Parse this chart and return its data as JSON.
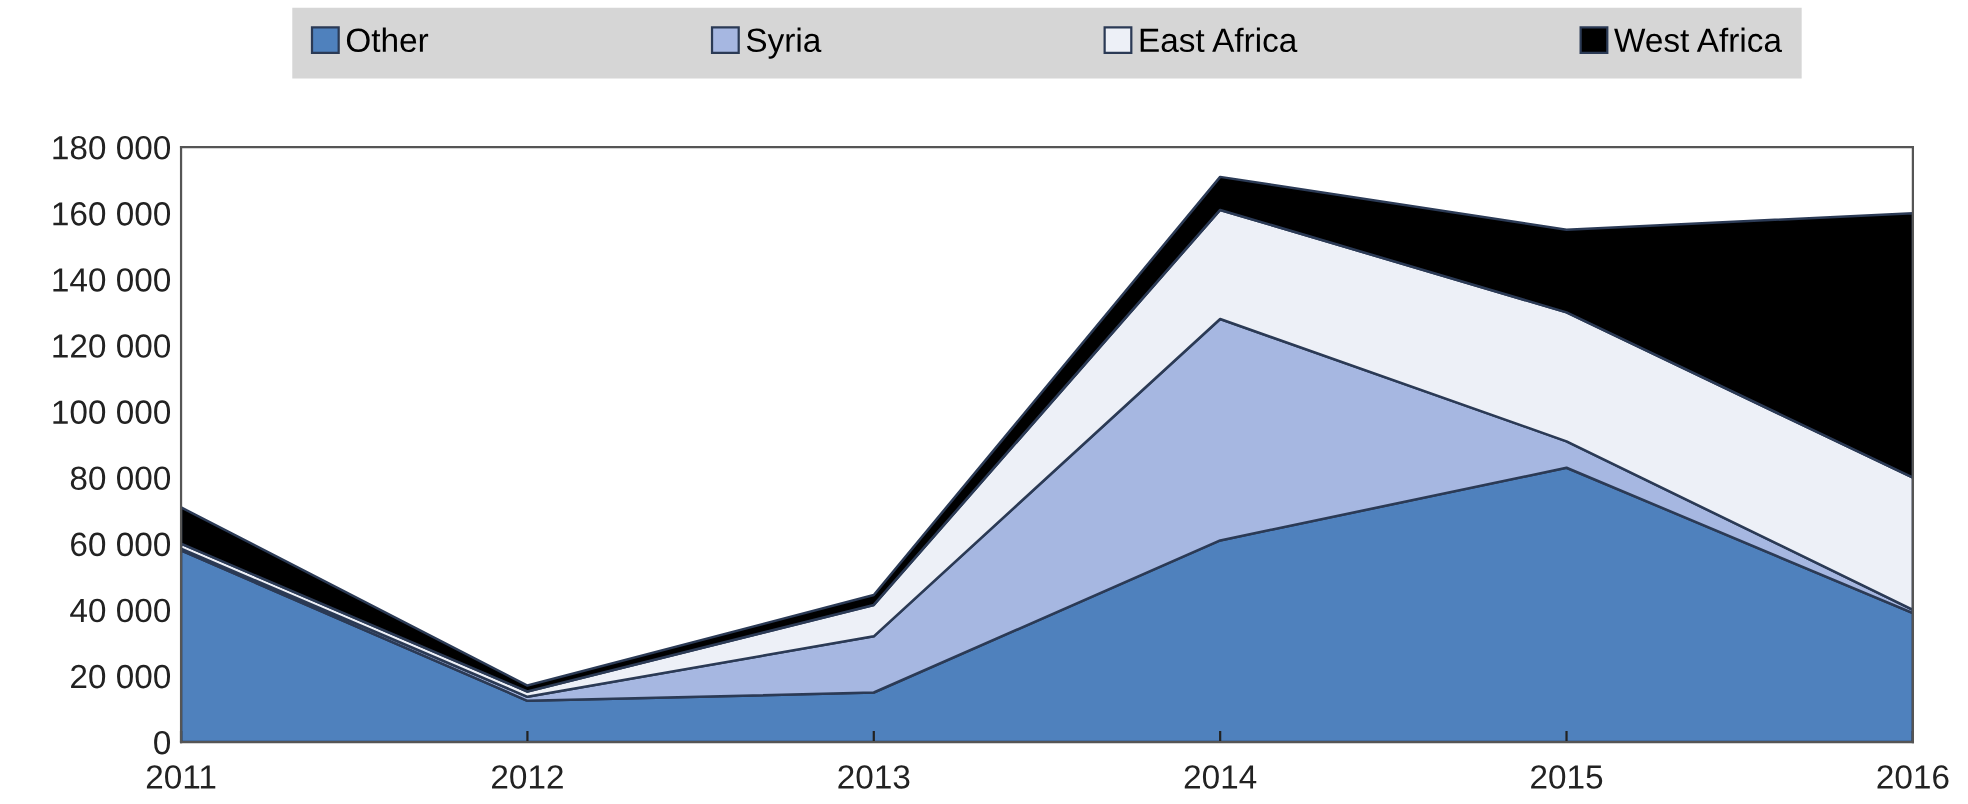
{
  "chart_data": {
    "type": "area",
    "stacked": true,
    "x": [
      2011,
      2012,
      2013,
      2014,
      2015,
      2016
    ],
    "xlim": [
      2011,
      2016
    ],
    "xticks": [
      2011,
      2012,
      2013,
      2014,
      2015,
      2016
    ],
    "ylim": [
      0,
      180000
    ],
    "yticks": [
      {
        "value": 0,
        "label": "0"
      },
      {
        "value": 20000,
        "label": "20 000"
      },
      {
        "value": 40000,
        "label": "40 000"
      },
      {
        "value": 60000,
        "label": "60 000"
      },
      {
        "value": 80000,
        "label": "80 000"
      },
      {
        "value": 100000,
        "label": "100 000"
      },
      {
        "value": 120000,
        "label": "120 000"
      },
      {
        "value": 140000,
        "label": "140 000"
      },
      {
        "value": 160000,
        "label": "160 000"
      },
      {
        "value": 180000,
        "label": "180 000"
      }
    ],
    "grid": false,
    "legend": "top",
    "series": [
      {
        "name": "Other",
        "color": "#4f81bd",
        "values": [
          58000,
          12500,
          15000,
          61000,
          83000,
          39000
        ]
      },
      {
        "name": "Syria",
        "color": "#a6b7e1",
        "values": [
          500,
          1200,
          17000,
          67000,
          8000,
          1000
        ]
      },
      {
        "name": "East Africa",
        "color": "#edf0f7",
        "values": [
          1500,
          1600,
          9500,
          33000,
          39000,
          40000
        ]
      },
      {
        "name": "West Africa",
        "color": "#000000",
        "values": [
          11000,
          1800,
          3000,
          10000,
          25000,
          80000
        ]
      }
    ]
  }
}
